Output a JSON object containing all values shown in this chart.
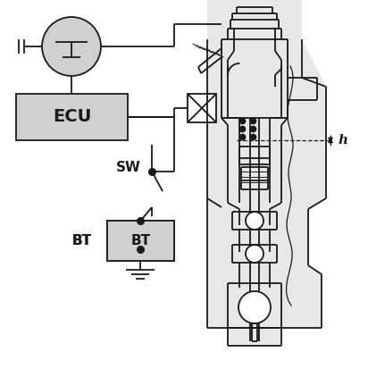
{
  "bg_color": "#ffffff",
  "line_color": "#1a1a1a",
  "gray_fill": "#d0d0d0",
  "figsize": [
    4.12,
    4.22
  ],
  "dpi": 100,
  "ECU": "ECU",
  "SW": "SW",
  "BT": "BT",
  "h": "h"
}
